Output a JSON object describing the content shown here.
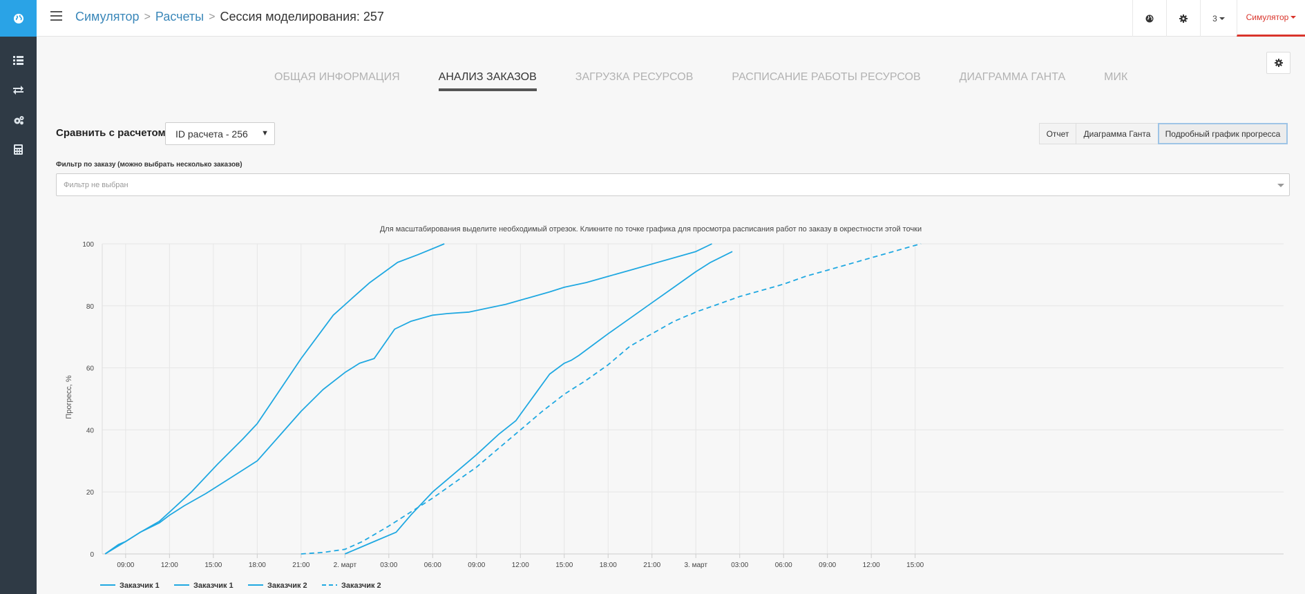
{
  "breadcrumbs": {
    "items": [
      "Симулятор",
      "Расчеты"
    ],
    "current": "Сессия моделирования: 257"
  },
  "topbar": {
    "globe_icon": "globe-icon",
    "settings_icon": "gear-icon",
    "number_menu": "3",
    "user_menu": "Симулятор"
  },
  "sidebar": {
    "logo_icon": "globe-logo-icon",
    "items": [
      {
        "icon": "list-icon"
      },
      {
        "icon": "exchange-arrows-icon"
      },
      {
        "icon": "gears-icon"
      },
      {
        "icon": "calculator-icon"
      }
    ]
  },
  "tabs": [
    {
      "label": "ОБЩАЯ ИНФОРМАЦИЯ",
      "active": false
    },
    {
      "label": "АНАЛИЗ ЗАКАЗОВ",
      "active": true
    },
    {
      "label": "ЗАГРУЗКА РЕСУРСОВ",
      "active": false
    },
    {
      "label": "РАСПИСАНИЕ РАБОТЫ РЕСУРСОВ",
      "active": false
    },
    {
      "label": "ДИАГРАММА ГАНТА",
      "active": false
    },
    {
      "label": "МИК",
      "active": false
    }
  ],
  "compare": {
    "label": "Сравнить с расчетом:",
    "selected": "ID расчета - 256"
  },
  "view_buttons": [
    {
      "label": "Отчет",
      "active": false
    },
    {
      "label": "Диаграмма Ганта",
      "active": false
    },
    {
      "label": "Подробный график прогресса",
      "active": true
    }
  ],
  "filter": {
    "label": "Фильтр по заказу (можно выбрать несколько заказов)",
    "placeholder": "Фильтр не выбран"
  },
  "colors": {
    "series": "#1fa8e1",
    "accent": "#d9342b",
    "link": "#3a87b9"
  },
  "chart_data": {
    "type": "line",
    "title": "Для масштабирования выделите необходимый отрезок. Кликните по точке графика для просмотра расписания работ по заказу в окрестности этой точки",
    "ylabel": "Прогресс, %",
    "xlabel": "",
    "ylim": [
      0,
      100
    ],
    "yticks": [
      0,
      20,
      40,
      60,
      80,
      100
    ],
    "x_unit": "hours from 1 March 00:00",
    "xlim": [
      7.4,
      88.2
    ],
    "xticks": [
      {
        "x": 9,
        "label": "09:00"
      },
      {
        "x": 12,
        "label": "12:00"
      },
      {
        "x": 15,
        "label": "15:00"
      },
      {
        "x": 18,
        "label": "18:00"
      },
      {
        "x": 21,
        "label": "21:00"
      },
      {
        "x": 24,
        "label": "2. март"
      },
      {
        "x": 27,
        "label": "03:00"
      },
      {
        "x": 30,
        "label": "06:00"
      },
      {
        "x": 33,
        "label": "09:00"
      },
      {
        "x": 36,
        "label": "12:00"
      },
      {
        "x": 39,
        "label": "15:00"
      },
      {
        "x": 42,
        "label": "18:00"
      },
      {
        "x": 45,
        "label": "21:00"
      },
      {
        "x": 48,
        "label": "3. март"
      },
      {
        "x": 51,
        "label": "03:00"
      },
      {
        "x": 54,
        "label": "06:00"
      },
      {
        "x": 57,
        "label": "09:00"
      },
      {
        "x": 60,
        "label": "12:00"
      },
      {
        "x": 63,
        "label": "15:00"
      }
    ],
    "grid": true,
    "legend": "bottom-left",
    "series": [
      {
        "name": "Заказчик 1",
        "dash": false,
        "x": [
          7.6,
          8.5,
          9,
          10,
          11.3,
          12,
          13.5,
          15.3,
          17,
          18,
          21,
          23.2,
          24.5,
          25.7,
          27.6,
          29,
          30.8
        ],
        "y": [
          0,
          3,
          4,
          7,
          10.5,
          13.5,
          20,
          29,
          37,
          42,
          63,
          77,
          82.5,
          87.5,
          94,
          96.5,
          100
        ]
      },
      {
        "name": "Заказчик 1",
        "dash": false,
        "x": [
          7.6,
          9,
          10,
          11.3,
          12,
          13,
          14.5,
          16,
          17,
          18,
          19.5,
          21,
          22.5,
          24,
          25,
          26,
          27.4,
          28.5,
          30,
          31,
          32.5,
          33.5,
          35,
          36.5,
          38,
          39,
          40.5,
          42,
          43.5,
          45,
          46.5,
          48,
          49.1
        ],
        "y": [
          0,
          4,
          7,
          10,
          12.5,
          15.5,
          19.5,
          24,
          27,
          30,
          38,
          46,
          53,
          58.5,
          61.5,
          63,
          72.5,
          75,
          77,
          77.5,
          78,
          79,
          80.5,
          82.5,
          84.5,
          86,
          87.5,
          89.5,
          91.5,
          93.5,
          95.5,
          97.5,
          100
        ]
      },
      {
        "name": "Заказчик 2",
        "dash": false,
        "x": [
          24,
          25,
          26,
          27.5,
          28.5,
          30,
          31.5,
          33,
          34.5,
          35.7,
          36,
          37,
          38,
          39,
          39.5,
          40,
          41,
          42,
          43.5,
          45,
          46.5,
          48,
          49,
          50.5
        ],
        "y": [
          0,
          2,
          4,
          7,
          12.5,
          20,
          26,
          32,
          38.5,
          43,
          45,
          51.5,
          58,
          61.5,
          62.5,
          64,
          67.5,
          71,
          76,
          81,
          86,
          91,
          94,
          97.5
        ]
      },
      {
        "name": "Заказчик 2",
        "dash": true,
        "x": [
          21,
          22.5,
          24,
          25.2,
          27,
          28.5,
          30,
          31.5,
          33,
          34.5,
          36,
          37.5,
          39,
          40.5,
          42,
          43.5,
          45,
          46.5,
          48,
          49.5,
          51,
          52.5,
          54,
          55.5,
          57,
          58.5,
          60,
          61.5,
          63,
          63.4
        ],
        "y": [
          0,
          0.5,
          1.5,
          4,
          9,
          13.5,
          18,
          23,
          28,
          34,
          40,
          46,
          51.5,
          56,
          61,
          67,
          71,
          75,
          78,
          80.5,
          83,
          85,
          87,
          89.5,
          91.5,
          93.5,
          95.5,
          97.5,
          99.5,
          100
        ]
      }
    ]
  }
}
